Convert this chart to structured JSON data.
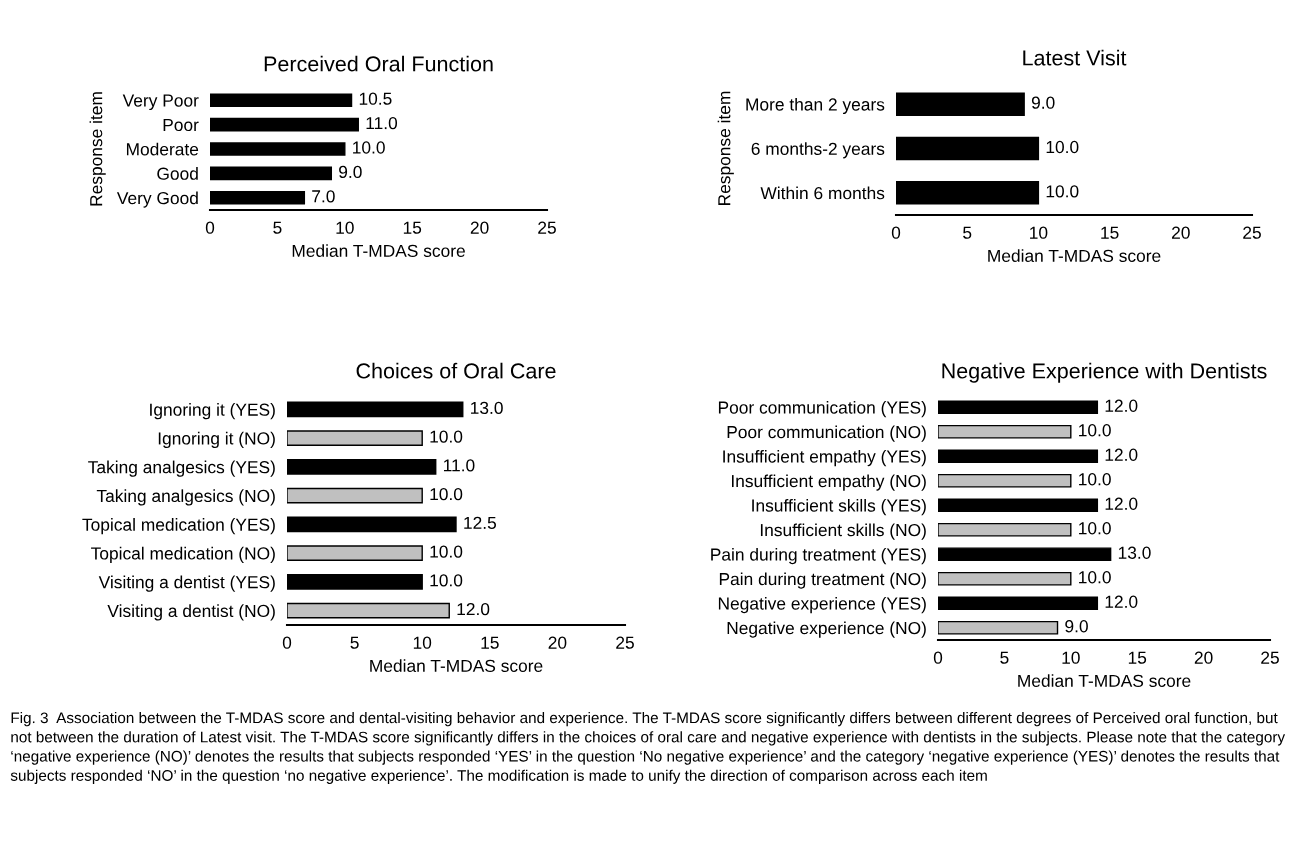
{
  "chart_data": [
    {
      "type": "bar",
      "orientation": "horizontal",
      "title": "Perceived Oral Function",
      "xlabel": "Median T-MDAS score",
      "ylabel": "Response item",
      "categories": [
        "Very Poor",
        "Poor",
        "Moderate",
        "Good",
        "Very Good"
      ],
      "values": [
        10.5,
        11.0,
        10.0,
        9.0,
        7.0
      ],
      "colors": [
        "#000000",
        "#000000",
        "#000000",
        "#000000",
        "#000000"
      ],
      "value_labels": [
        "10.5",
        "11.0",
        "10.0",
        "9.0",
        "7.0"
      ],
      "xlim": [
        0,
        25
      ],
      "xticks": [
        0,
        5,
        10,
        15,
        20,
        25
      ],
      "grid": false,
      "legend": false
    },
    {
      "type": "bar",
      "orientation": "horizontal",
      "title": "Latest Visit",
      "xlabel": "Median T-MDAS score",
      "ylabel": "Response item",
      "categories": [
        "More than 2 years",
        "6 months-2 years",
        "Within 6 months"
      ],
      "values": [
        9.0,
        10.0,
        10.0
      ],
      "colors": [
        "#000000",
        "#000000",
        "#000000"
      ],
      "value_labels": [
        "9.0",
        "10.0",
        "10.0"
      ],
      "xlim": [
        0,
        25
      ],
      "xticks": [
        0,
        5,
        10,
        15,
        20,
        25
      ],
      "grid": false,
      "legend": false
    },
    {
      "type": "bar",
      "orientation": "horizontal",
      "title": "Choices of Oral Care",
      "xlabel": "Median T-MDAS score",
      "categories": [
        "Ignoring it (YES)",
        "Ignoring it (NO)",
        "Taking analgesics (YES)",
        "Taking analgesics (NO)",
        "Topical medication (YES)",
        "Topical medication (NO)",
        "Visiting a dentist (YES)",
        "Visiting a dentist (NO)"
      ],
      "values": [
        13.0,
        10.0,
        11.0,
        10.0,
        12.5,
        10.0,
        10.0,
        12.0
      ],
      "colors": [
        "#000000",
        "#c0c0c0",
        "#000000",
        "#c0c0c0",
        "#000000",
        "#c0c0c0",
        "#000000",
        "#c0c0c0"
      ],
      "value_labels": [
        "13.0",
        "10.0",
        "11.0",
        "10.0",
        "12.5",
        "10.0",
        "10.0",
        "12.0"
      ],
      "xlim": [
        0,
        25
      ],
      "xticks": [
        0,
        5,
        10,
        15,
        20,
        25
      ],
      "grid": false,
      "legend": false
    },
    {
      "type": "bar",
      "orientation": "horizontal",
      "title": "Negative Experience with Dentists",
      "xlabel": "Median T-MDAS score",
      "categories": [
        "Poor communication (YES)",
        "Poor communication (NO)",
        "Insufficient empathy (YES)",
        "Insufficient empathy (NO)",
        "Insufficient skills (YES)",
        "Insufficient skills (NO)",
        "Pain during treatment (YES)",
        "Pain during treatment (NO)",
        "Negative experience (YES)",
        "Negative experience (NO)"
      ],
      "values": [
        12.0,
        10.0,
        12.0,
        10.0,
        12.0,
        10.0,
        13.0,
        10.0,
        12.0,
        9.0
      ],
      "colors": [
        "#000000",
        "#c0c0c0",
        "#000000",
        "#c0c0c0",
        "#000000",
        "#c0c0c0",
        "#000000",
        "#c0c0c0",
        "#000000",
        "#c0c0c0"
      ],
      "value_labels": [
        "12.0",
        "10.0",
        "12.0",
        "10.0",
        "12.0",
        "10.0",
        "13.0",
        "10.0",
        "12.0",
        "9.0"
      ],
      "xlim": [
        0,
        25
      ],
      "xticks": [
        0,
        5,
        10,
        15,
        20,
        25
      ],
      "grid": false,
      "legend": false,
      "annotations": [
        "Fig. 3  Association between the T-MDAS score and dental-visiting behavior and experience. The T-MDAS score significantly differs between different degrees of Perceived oral function, but not between the duration of Latest visit. The T-MDAS score significantly differs in the choices of oral care and negative experience with dentists in the subjects. Please note that the category ‘negative experience (NO)’ denotes the results that subjects responded ‘YES’ in the question ‘No negative experience’ and the category ‘negative experience (YES)’ denotes the results that subjects responded ‘NO’ in the question ‘no negative experience’. The modification is made to unify the direction of comparison across each item"
      ]
    }
  ]
}
